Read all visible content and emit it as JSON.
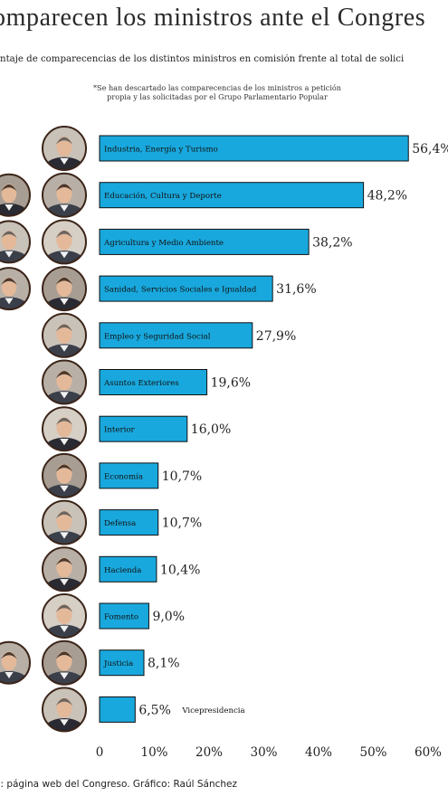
{
  "header": {
    "title": "omparecen los ministros ante el Congres",
    "subtitle": "entaje de comparecencias de los distintos ministros en comisión frente al total de solici",
    "note_line1": "*Se han descartado las comparecencias de los ministros a petición",
    "note_line2": "propia y las solicitadas por el Grupo Parlamentario Popular"
  },
  "footer": {
    "source": "e: página web del Congreso. Gráfico: Raúl Sánchez"
  },
  "colors": {
    "bar": "#19a8dd",
    "bar_outline": "#0f0f0f",
    "photo_ring": "#3b2418",
    "photo_face": "#e3b99a"
  },
  "chart_data": {
    "type": "bar",
    "orientation": "horizontal",
    "categories": [
      "Industria, Energía y Turismo",
      "Educación, Cultura y Deporte",
      "Agricultura y Medio Ambiente",
      "Sanidad, Servicios Sociales e Igualdad",
      "Empleo y Seguridad Social",
      "Asuntos Exteriores",
      "Interior",
      "Economía",
      "Defensa",
      "Hacienda",
      "Fomento",
      "Justicia",
      "Vicepresidencia"
    ],
    "values": [
      56.4,
      48.2,
      38.2,
      31.6,
      27.9,
      19.6,
      16.0,
      10.7,
      10.7,
      10.4,
      9.0,
      8.1,
      6.5
    ],
    "value_labels": [
      "56,4%",
      "48,2%",
      "38,2%",
      "31,6%",
      "27,9%",
      "19,6%",
      "16,0%",
      "10,7%",
      "10,7%",
      "10,4%",
      "9,0%",
      "8,1%",
      "6,5%"
    ],
    "xlim": [
      0,
      60
    ],
    "xticks": [
      0,
      10,
      20,
      30,
      40,
      50,
      60
    ],
    "xtick_labels": [
      "0",
      "10%",
      "20%",
      "30%",
      "40%",
      "50%",
      "60%"
    ],
    "category_label_outside_bar": [
      false,
      false,
      false,
      false,
      false,
      false,
      false,
      false,
      false,
      false,
      false,
      false,
      true
    ],
    "grid": false,
    "legend": "none"
  },
  "portraits": {
    "main": [
      "portrait-industria",
      "portrait-educacion",
      "portrait-agricultura",
      "portrait-sanidad",
      "portrait-empleo",
      "portrait-exteriores",
      "portrait-interior",
      "portrait-economia",
      "portrait-defensa",
      "portrait-hacienda",
      "portrait-fomento",
      "portrait-justicia",
      "portrait-vicepresidencia"
    ],
    "previous_ministers_rows": [
      1,
      2,
      3,
      11
    ]
  }
}
